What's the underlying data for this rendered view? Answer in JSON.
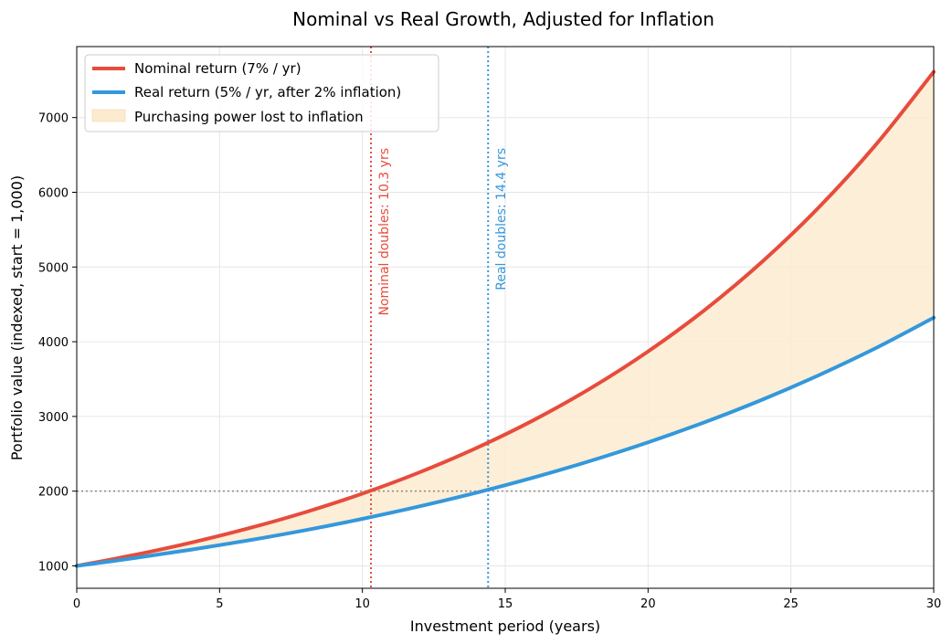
{
  "chart_data": {
    "type": "line",
    "title": "Nominal vs Real Growth, Adjusted for Inflation",
    "xlabel": "Investment period (years)",
    "ylabel": "Portfolio value (indexed, start = 1,000)",
    "xlim": [
      0,
      30
    ],
    "ylim": [
      700,
      7950
    ],
    "x_ticks": [
      0,
      5,
      10,
      15,
      20,
      25,
      30
    ],
    "y_ticks": [
      1000,
      2000,
      3000,
      4000,
      5000,
      6000,
      7000
    ],
    "grid": true,
    "legend_position": "top-left",
    "series": [
      {
        "name": "Nominal return (7% / yr)",
        "color": "#e74c3c",
        "x": [
          0,
          2,
          4,
          6,
          8,
          10,
          12,
          14,
          16,
          18,
          20,
          22,
          24,
          26,
          28,
          30
        ],
        "values": [
          1000,
          1145,
          1311,
          1501,
          1718,
          1967,
          2252,
          2579,
          2952,
          3380,
          3870,
          4430,
          5072,
          5807,
          6649,
          7612
        ]
      },
      {
        "name": "Real return (5% / yr, after 2% inflation)",
        "color": "#3498db",
        "x": [
          0,
          2,
          4,
          6,
          8,
          10,
          12,
          14,
          16,
          18,
          20,
          22,
          24,
          26,
          28,
          30
        ],
        "values": [
          1000,
          1103,
          1216,
          1340,
          1477,
          1629,
          1796,
          1980,
          2183,
          2407,
          2653,
          2925,
          3225,
          3556,
          3920,
          4322
        ]
      }
    ],
    "fill_between": {
      "name": "Purchasing power lost to inflation",
      "color": "#fdebd0"
    },
    "reference_lines": [
      {
        "orientation": "horizontal",
        "y": 2000,
        "color": "#888888"
      },
      {
        "orientation": "vertical",
        "x": 10.3,
        "color": "#e74c3c",
        "label": "Nominal doubles: 10.3 yrs"
      },
      {
        "orientation": "vertical",
        "x": 14.4,
        "color": "#3498db",
        "label": "Real doubles: 14.4 yrs"
      }
    ]
  }
}
